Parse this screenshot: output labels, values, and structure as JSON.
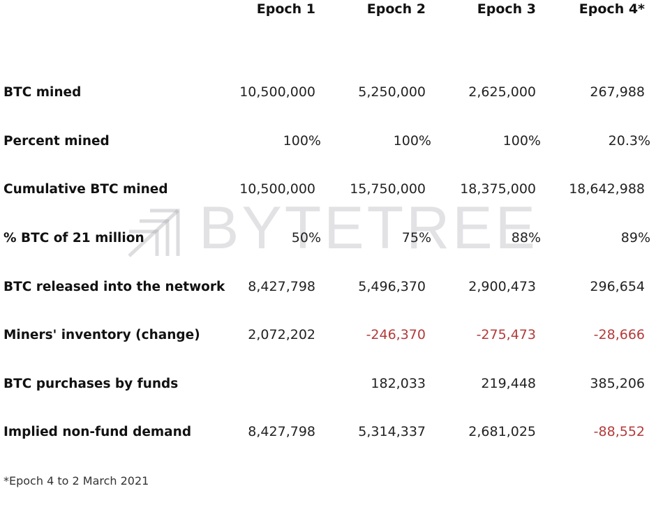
{
  "chart_data": {
    "type": "table",
    "columns": [
      "Epoch 1",
      "Epoch 2",
      "Epoch 3",
      "Epoch 4*"
    ],
    "rows": [
      {
        "label": "BTC mined",
        "values": [
          "10,500,000",
          "5,250,000",
          "2,625,000",
          "267,988"
        ]
      },
      {
        "label": "Percent mined",
        "values": [
          "100%",
          "100%",
          "100%",
          "20.3%"
        ]
      },
      {
        "label": "Cumulative BTC mined",
        "values": [
          "10,500,000",
          "15,750,000",
          "18,375,000",
          "18,642,988"
        ]
      },
      {
        "label": "% BTC of 21 million",
        "values": [
          "50%",
          "75%",
          "88%",
          "89%"
        ]
      },
      {
        "label": "BTC released into the network",
        "values": [
          "8,427,798",
          "5,496,370",
          "2,900,473",
          "296,654"
        ]
      },
      {
        "label": "Miners' inventory (change)",
        "values": [
          "2,072,202",
          "-246,370",
          "-275,473",
          "-28,666"
        ]
      },
      {
        "label": "BTC purchases by funds",
        "values": [
          "",
          "182,033",
          "219,448",
          "385,206"
        ]
      },
      {
        "label": "Implied non-fund demand",
        "values": [
          "8,427,798",
          "5,314,337",
          "2,681,025",
          "-88,552"
        ]
      }
    ],
    "footnote": "*Epoch 4 to 2 March 2021",
    "negative_color": "#b33a3a"
  },
  "watermark": {
    "text": "BYTETREE",
    "color": "#9696a0"
  }
}
